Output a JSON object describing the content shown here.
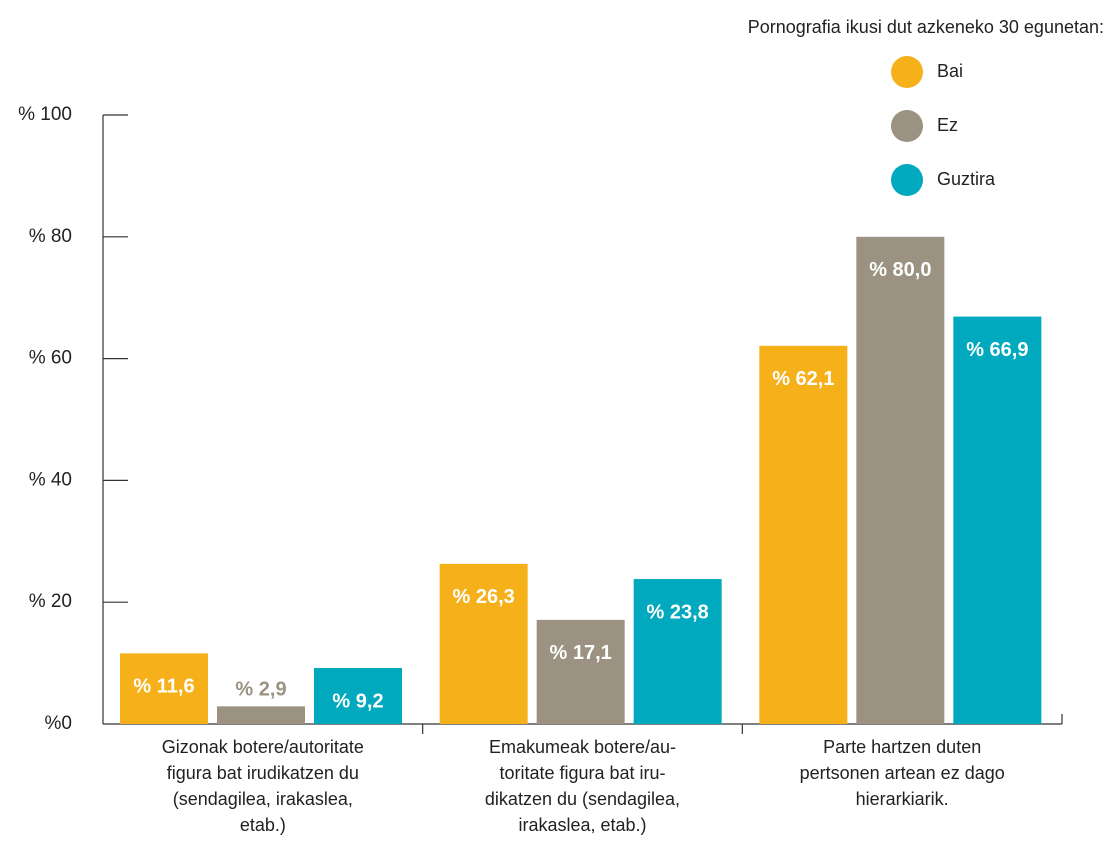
{
  "chart_data": {
    "type": "bar",
    "legend_title": "Pornografia ikusi dut azkeneko 30 egunetan:",
    "categories": [
      "Gizonak botere/autoritate\nfigura bat irudikatzen du\n(sendagilea, irakaslea,\netab.)",
      "Emakumeak botere/au-\ntoritate figura bat iru-\ndikatzen du (sendagilea,\nirakaslea, etab.)",
      "Parte hartzen duten\npertsonen artean ez dago\nhierarkiarik."
    ],
    "series": [
      {
        "name": "Bai",
        "color": "#f6b01a",
        "values": [
          11.6,
          26.3,
          62.1
        ],
        "value_labels": [
          "% 11,6",
          "% 26,3",
          "% 62,1"
        ]
      },
      {
        "name": "Ez",
        "color": "#9b9282",
        "values": [
          2.9,
          17.1,
          80.0
        ],
        "value_labels": [
          "% 2,9",
          "% 17,1",
          "% 80,0"
        ]
      },
      {
        "name": "Guztira",
        "color": "#00a9bd",
        "values": [
          9.2,
          23.8,
          66.9
        ],
        "value_labels": [
          "% 9,2",
          "% 23,8",
          "% 66,9"
        ]
      }
    ],
    "ylim": [
      0,
      100
    ],
    "yticks": [
      {
        "value": 0,
        "label": "%0"
      },
      {
        "value": 20,
        "label": "% 20"
      },
      {
        "value": 40,
        "label": "% 40"
      },
      {
        "value": 60,
        "label": "% 60"
      },
      {
        "value": 80,
        "label": "% 80"
      },
      {
        "value": 100,
        "label": "% 100"
      }
    ],
    "grid": false,
    "legend": "top-right"
  }
}
